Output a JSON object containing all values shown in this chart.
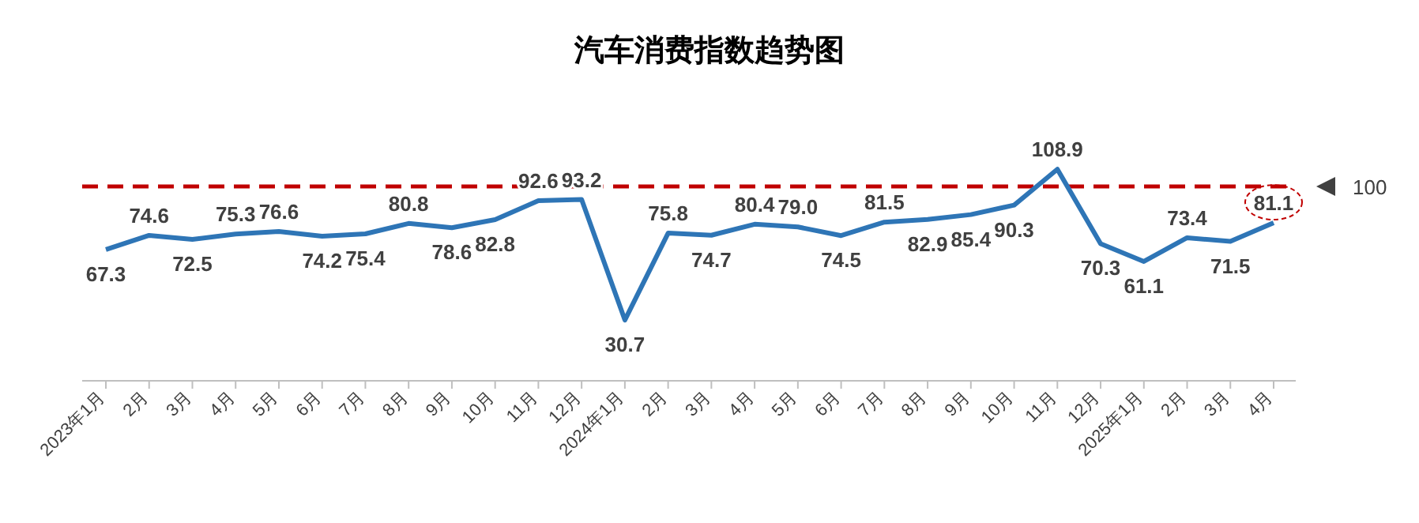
{
  "chart_data": {
    "type": "line",
    "title": "汽车消费指数趋势图",
    "categories": [
      "2023年1月",
      "2月",
      "3月",
      "4月",
      "5月",
      "6月",
      "7月",
      "8月",
      "9月",
      "10月",
      "11月",
      "12月",
      "2024年1月",
      "2月",
      "3月",
      "4月",
      "5月",
      "6月",
      "7月",
      "8月",
      "9月",
      "10月",
      "11月",
      "12月",
      "2025年1月",
      "2月",
      "3月",
      "4月"
    ],
    "series": [
      {
        "color": "#2e75b6",
        "values": [
          67.3,
          74.6,
          72.5,
          75.3,
          76.6,
          74.2,
          75.4,
          80.8,
          78.6,
          82.8,
          92.6,
          93.2,
          30.7,
          75.8,
          74.7,
          80.4,
          79.0,
          74.5,
          81.5,
          82.9,
          85.4,
          90.3,
          108.9,
          70.3,
          61.1,
          73.4,
          71.5,
          81.1
        ],
        "value_labels": [
          "67.3",
          "74.6",
          "72.5",
          "75.3",
          "76.6",
          "74.2",
          "75.4",
          "80.8",
          "78.6",
          "82.8",
          "92.6",
          "93.2",
          "30.7",
          "75.8",
          "74.7",
          "80.4",
          "79.0",
          "74.5",
          "81.5",
          "82.9",
          "85.4",
          "90.3",
          "108.9",
          "70.3",
          "61.1",
          "73.4",
          "71.5",
          "81.1"
        ]
      }
    ],
    "marker": "none",
    "line_style": "solid",
    "ref_lines": [
      {
        "axis": "y",
        "value": 100,
        "label": "100",
        "color": "#c00000",
        "line_style": "dashed"
      }
    ]
  }
}
